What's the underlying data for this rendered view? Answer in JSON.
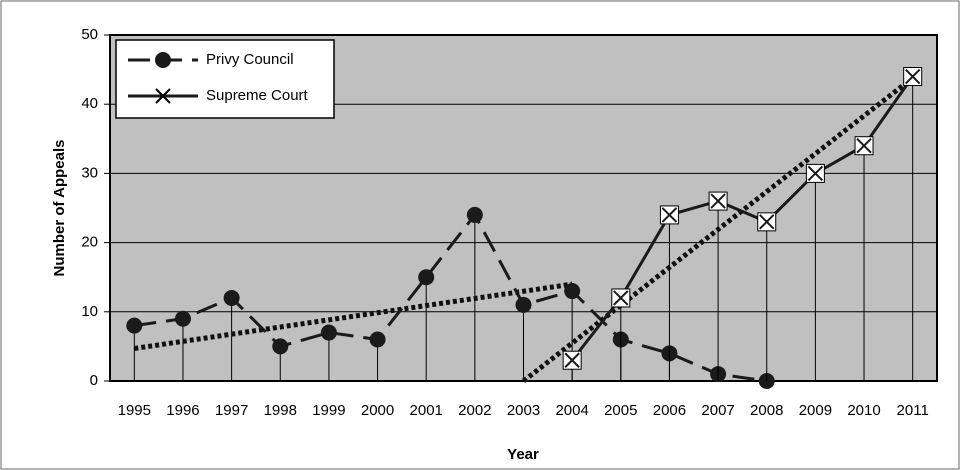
{
  "chart_data": {
    "type": "line",
    "xlabel": "Year",
    "ylabel": "Number of Appeals",
    "categories": [
      "1995",
      "1996",
      "1997",
      "1998",
      "1999",
      "2000",
      "2001",
      "2002",
      "2003",
      "2004",
      "2005",
      "2006",
      "2007",
      "2008",
      "2009",
      "2010",
      "2011"
    ],
    "series": [
      {
        "name": "Privy Council",
        "color": "#1a1a1a",
        "marker": "circle",
        "dash": true,
        "values": [
          8,
          9,
          12,
          5,
          7,
          6,
          15,
          24,
          11,
          13,
          6,
          4,
          1,
          0,
          null,
          null,
          null
        ],
        "trendline": {
          "x": [
            "1995",
            "2004"
          ],
          "values": [
            4.7,
            14
          ]
        }
      },
      {
        "name": "Supreme Court",
        "color": "#1a1a1a",
        "marker": "x-square",
        "dash": false,
        "values": [
          null,
          null,
          null,
          null,
          null,
          null,
          null,
          null,
          null,
          3,
          12,
          24,
          26,
          23,
          30,
          34,
          44
        ],
        "trendline": {
          "x": [
            "2003",
            "2011"
          ],
          "values": [
            0,
            43.8
          ]
        }
      }
    ],
    "ylim": [
      0,
      50
    ],
    "yticks": [
      0,
      10,
      20,
      30,
      40,
      50
    ],
    "grid": true,
    "legend": "top-left",
    "background": "#c0c0c0"
  }
}
